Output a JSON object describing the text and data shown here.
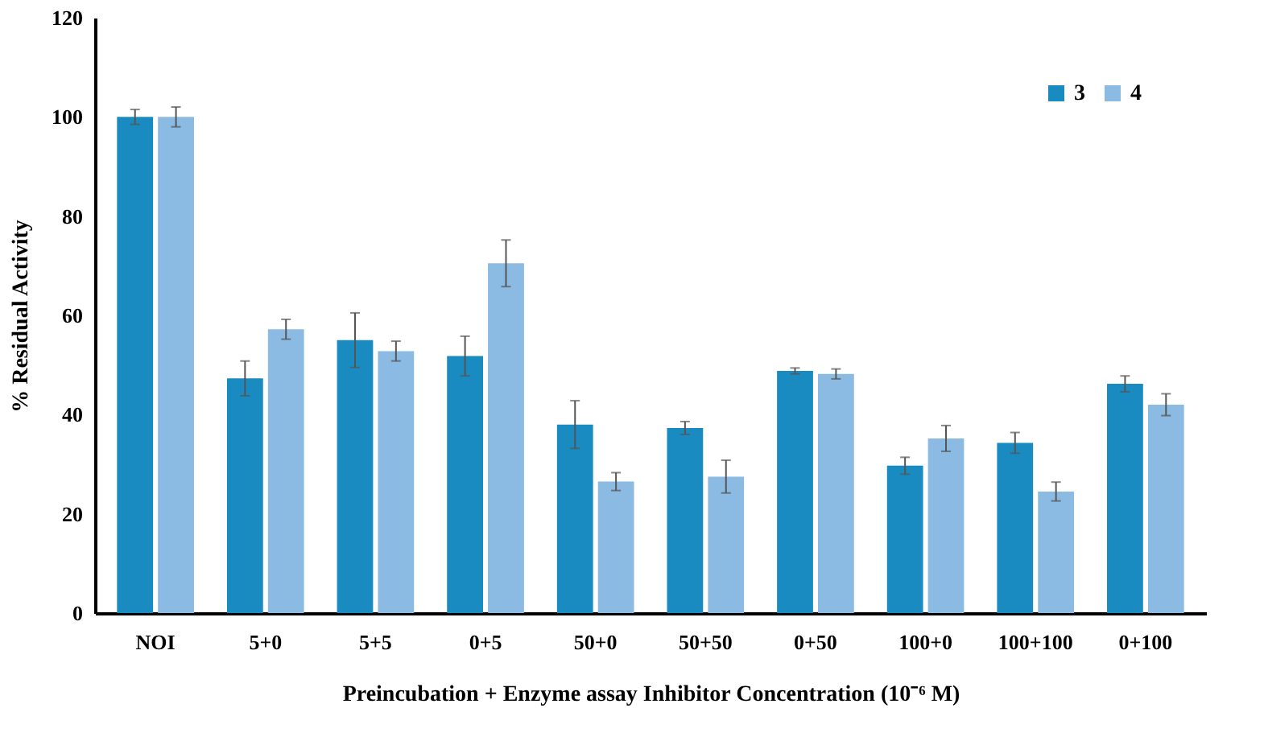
{
  "chart_data": {
    "type": "bar",
    "xlabel": "Preincubation + Enzyme assay Inhibitor  Concentration  (10⁻⁶ M)",
    "ylabel": "% Residual Activity",
    "categories": [
      "NOI",
      "5+0",
      "5+5",
      "0+5",
      "50+0",
      "50+50",
      "0+50",
      "100+0",
      "100+100",
      "0+100"
    ],
    "series": [
      {
        "name": "3",
        "color": "#1a8bc0",
        "values": [
          100,
          47.3,
          55,
          51.8,
          38,
          37.3,
          48.8,
          29.7,
          34.3,
          46.2
        ],
        "errors": [
          1.5,
          3.5,
          5.5,
          4,
          4.8,
          1.3,
          0.6,
          1.7,
          2.1,
          1.6
        ]
      },
      {
        "name": "4",
        "color": "#8bbae2",
        "values": [
          100,
          57.2,
          52.8,
          70.5,
          26.5,
          27.5,
          48.2,
          35.2,
          24.5,
          42
        ],
        "errors": [
          2,
          2,
          2,
          4.7,
          1.8,
          3.3,
          1,
          2.6,
          1.9,
          2.2
        ]
      }
    ],
    "ylim": [
      0,
      120
    ],
    "yticks": [
      0,
      20,
      40,
      60,
      80,
      100,
      120
    ],
    "grid": false,
    "legend": "top right"
  }
}
